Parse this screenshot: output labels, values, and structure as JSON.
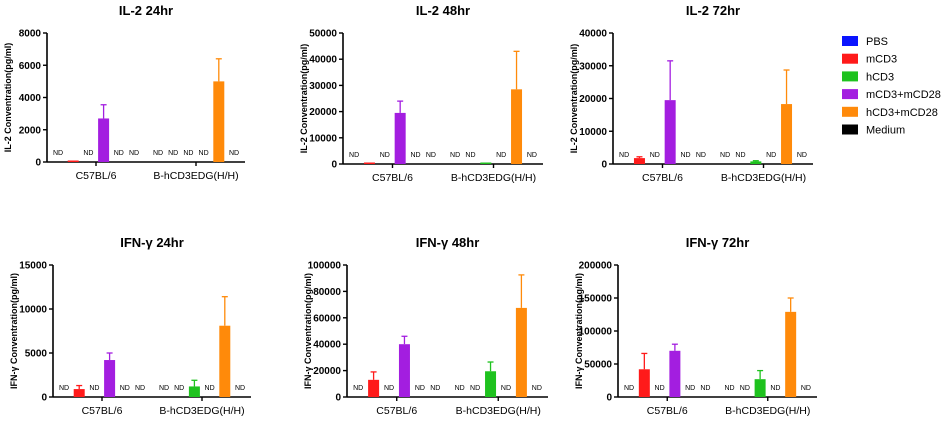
{
  "legend": [
    {
      "label": "PBS",
      "color": "#0a14ff"
    },
    {
      "label": "mCD3",
      "color": "#ff1a1a"
    },
    {
      "label": "hCD3",
      "color": "#1ec21e"
    },
    {
      "label": "mCD3+mCD28",
      "color": "#a31ee0"
    },
    {
      "label": "hCD3+mCD28",
      "color": "#ff8a0a"
    },
    {
      "label": "Medium",
      "color": "#000000"
    }
  ],
  "nd_label": "ND",
  "chart_data": [
    {
      "type": "bar",
      "title": "IL-2 24hr",
      "ylabel": "IL-2 Conventration(pg/ml)",
      "categories": [
        "C57BL/6",
        "B-hCD3EDG(H/H)"
      ],
      "ylim": [
        0,
        8000
      ],
      "yticks": [
        "0",
        "2000",
        "4000",
        "6000",
        "8000"
      ],
      "series": [
        {
          "name": "PBS",
          "values": [
            null,
            null
          ],
          "err": [
            null,
            null
          ]
        },
        {
          "name": "mCD3",
          "values": [
            60,
            null
          ],
          "err": [
            null,
            null
          ]
        },
        {
          "name": "hCD3",
          "values": [
            null,
            null
          ],
          "err": [
            null,
            null
          ]
        },
        {
          "name": "mCD3+mCD28",
          "values": [
            2700,
            null
          ],
          "err": [
            3550,
            null
          ]
        },
        {
          "name": "hCD3+mCD28",
          "values": [
            null,
            5000
          ],
          "err": [
            null,
            6400
          ]
        },
        {
          "name": "Medium",
          "values": [
            null,
            null
          ],
          "err": [
            null,
            null
          ]
        }
      ]
    },
    {
      "type": "bar",
      "title": "IL-2 48hr",
      "ylabel": "IL-2 Conventration(pg/ml)",
      "categories": [
        "C57BL/6",
        "B-hCD3EDG(H/H)"
      ],
      "ylim": [
        0,
        50000
      ],
      "yticks": [
        "0",
        "10000",
        "20000",
        "30000",
        "40000",
        "50000"
      ],
      "series": [
        {
          "name": "PBS",
          "values": [
            null,
            null
          ],
          "err": [
            null,
            null
          ]
        },
        {
          "name": "mCD3",
          "values": [
            400,
            null
          ],
          "err": [
            null,
            null
          ]
        },
        {
          "name": "hCD3",
          "values": [
            null,
            200
          ],
          "err": [
            null,
            null
          ]
        },
        {
          "name": "mCD3+mCD28",
          "values": [
            19500,
            null
          ],
          "err": [
            24000,
            null
          ]
        },
        {
          "name": "hCD3+mCD28",
          "values": [
            null,
            28500
          ],
          "err": [
            null,
            43000
          ]
        },
        {
          "name": "Medium",
          "values": [
            null,
            null
          ],
          "err": [
            null,
            null
          ]
        }
      ]
    },
    {
      "type": "bar",
      "title": "IL-2 72hr",
      "ylabel": "IL-2 Conventration(pg/ml)",
      "categories": [
        "C57BL/6",
        "B-hCD3EDG(H/H)"
      ],
      "ylim": [
        0,
        40000
      ],
      "yticks": [
        "0",
        "10000",
        "20000",
        "30000",
        "40000"
      ],
      "series": [
        {
          "name": "PBS",
          "values": [
            null,
            null
          ],
          "err": [
            null,
            null
          ]
        },
        {
          "name": "mCD3",
          "values": [
            1800,
            null
          ],
          "err": [
            2200,
            null
          ]
        },
        {
          "name": "hCD3",
          "values": [
            null,
            800
          ],
          "err": [
            null,
            1000
          ]
        },
        {
          "name": "mCD3+mCD28",
          "values": [
            19500,
            null
          ],
          "err": [
            31500,
            null
          ]
        },
        {
          "name": "hCD3+mCD28",
          "values": [
            null,
            18300
          ],
          "err": [
            null,
            28700
          ]
        },
        {
          "name": "Medium",
          "values": [
            null,
            null
          ],
          "err": [
            null,
            null
          ]
        }
      ]
    },
    {
      "type": "bar",
      "title": "IFN-γ 24hr",
      "ylabel": "IFN-γ Conventration(pg/ml)",
      "categories": [
        "C57BL/6",
        "B-hCD3EDG(H/H)"
      ],
      "ylim": [
        0,
        15000
      ],
      "yticks": [
        "0",
        "5000",
        "10000",
        "15000"
      ],
      "series": [
        {
          "name": "PBS",
          "values": [
            null,
            null
          ],
          "err": [
            null,
            null
          ]
        },
        {
          "name": "mCD3",
          "values": [
            900,
            null
          ],
          "err": [
            1300,
            null
          ]
        },
        {
          "name": "hCD3",
          "values": [
            null,
            1200
          ],
          "err": [
            null,
            1900
          ]
        },
        {
          "name": "mCD3+mCD28",
          "values": [
            4200,
            null
          ],
          "err": [
            5000,
            null
          ]
        },
        {
          "name": "hCD3+mCD28",
          "values": [
            null,
            8100
          ],
          "err": [
            null,
            11400
          ]
        },
        {
          "name": "Medium",
          "values": [
            null,
            null
          ],
          "err": [
            null,
            null
          ]
        }
      ]
    },
    {
      "type": "bar",
      "title": "IFN-γ 48hr",
      "ylabel": "IFN-γ Conventration(pg/ml)",
      "categories": [
        "C57BL/6",
        "B-hCD3EDG(H/H)"
      ],
      "ylim": [
        0,
        100000
      ],
      "yticks": [
        "0",
        "20000",
        "40000",
        "60000",
        "80000",
        "100000"
      ],
      "series": [
        {
          "name": "PBS",
          "values": [
            null,
            null
          ],
          "err": [
            null,
            null
          ]
        },
        {
          "name": "mCD3",
          "values": [
            13000,
            null
          ],
          "err": [
            19000,
            null
          ]
        },
        {
          "name": "hCD3",
          "values": [
            null,
            19500
          ],
          "err": [
            null,
            26500
          ]
        },
        {
          "name": "mCD3+mCD28",
          "values": [
            40000,
            null
          ],
          "err": [
            46000,
            null
          ]
        },
        {
          "name": "hCD3+mCD28",
          "values": [
            null,
            67500
          ],
          "err": [
            null,
            92500
          ]
        },
        {
          "name": "Medium",
          "values": [
            null,
            null
          ],
          "err": [
            null,
            null
          ]
        }
      ]
    },
    {
      "type": "bar",
      "title": "IFN-γ 72hr",
      "ylabel": "IFN-γ Conventration(pg/ml)",
      "categories": [
        "C57BL/6",
        "B-hCD3EDG(H/H)"
      ],
      "ylim": [
        0,
        200000
      ],
      "yticks": [
        "0",
        "50000",
        "100000",
        "150000",
        "200000"
      ],
      "series": [
        {
          "name": "PBS",
          "values": [
            null,
            null
          ],
          "err": [
            null,
            null
          ]
        },
        {
          "name": "mCD3",
          "values": [
            42000,
            null
          ],
          "err": [
            66000,
            null
          ]
        },
        {
          "name": "hCD3",
          "values": [
            null,
            27000
          ],
          "err": [
            null,
            40000
          ]
        },
        {
          "name": "mCD3+mCD28",
          "values": [
            70000,
            null
          ],
          "err": [
            80000,
            null
          ]
        },
        {
          "name": "hCD3+mCD28",
          "values": [
            null,
            129000
          ],
          "err": [
            null,
            150000
          ]
        },
        {
          "name": "Medium",
          "values": [
            null,
            null
          ],
          "err": [
            null,
            null
          ]
        }
      ]
    }
  ]
}
